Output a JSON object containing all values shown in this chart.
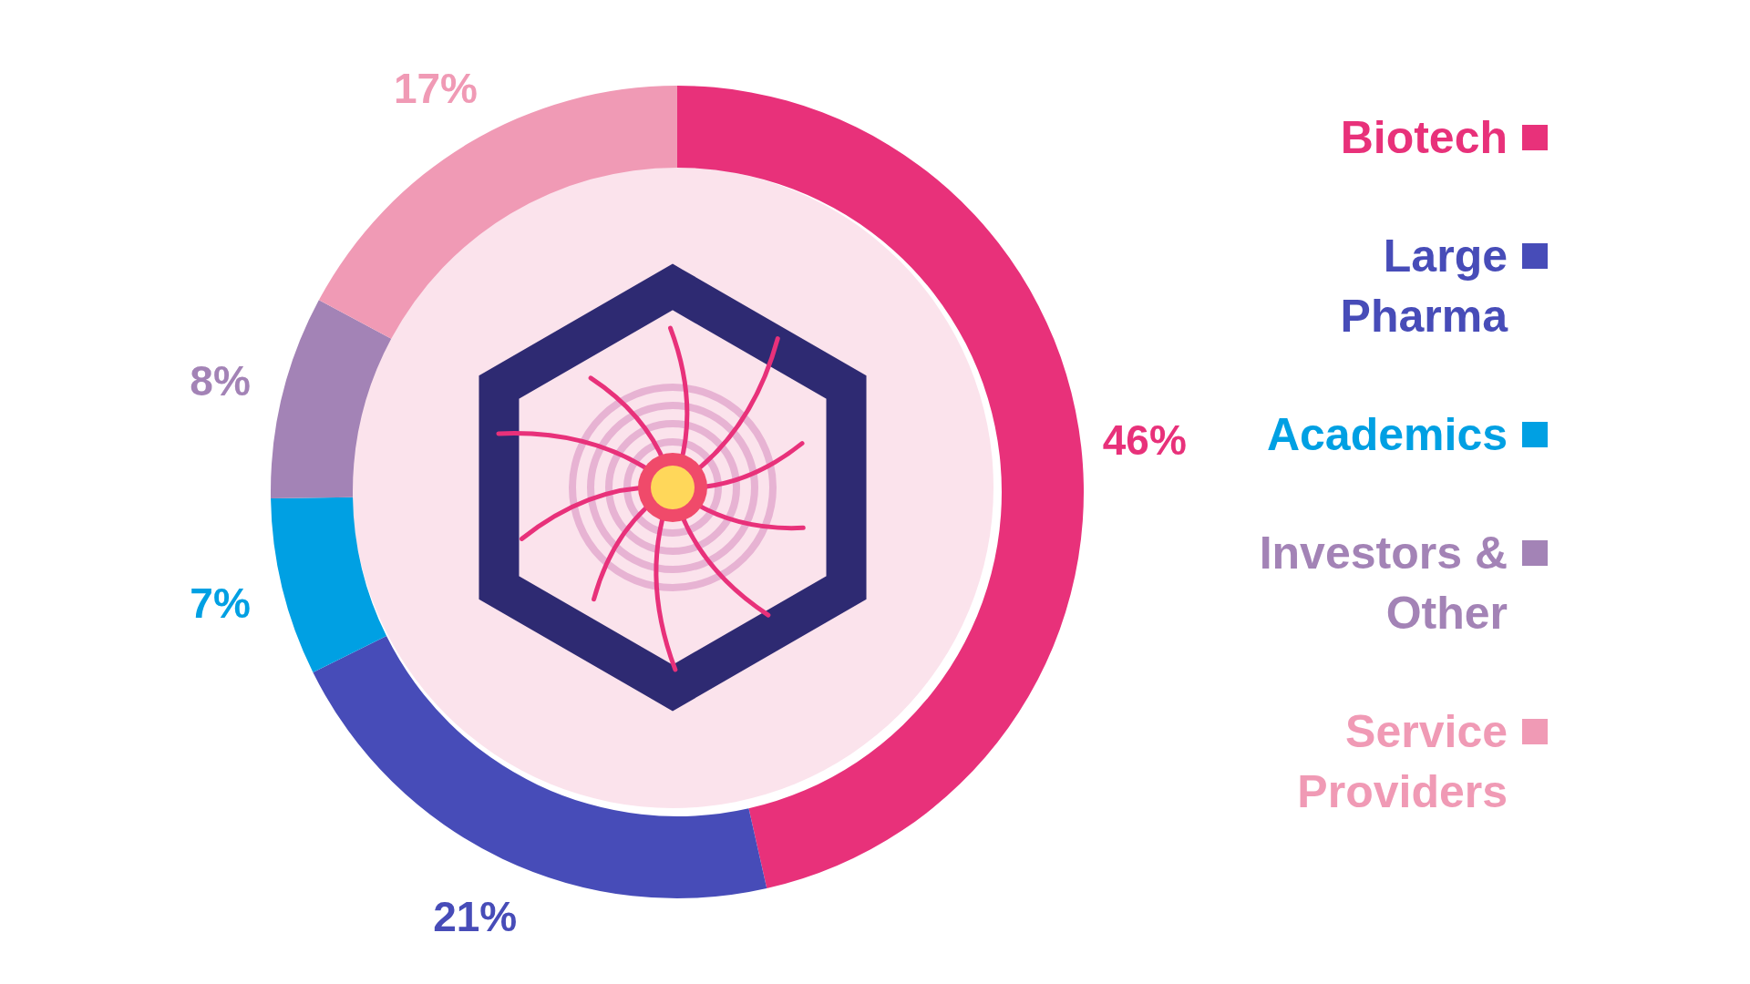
{
  "chart_data": {
    "type": "donut",
    "categories": [
      "Biotech",
      "Large Pharma",
      "Academics",
      "Investors & Other",
      "Service Providers"
    ],
    "values": [
      46,
      21,
      7,
      8,
      17
    ],
    "colors": [
      "#e8317a",
      "#474cb8",
      "#00a0e3",
      "#a383b6",
      "#f09ab5"
    ],
    "value_labels": [
      "46%",
      "21%",
      "7%",
      "8%",
      "17%"
    ],
    "legend": "right"
  }
}
